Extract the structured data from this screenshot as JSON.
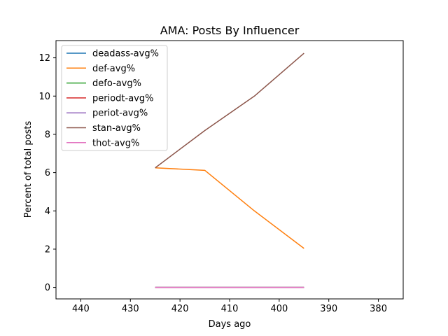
{
  "chart_data": {
    "type": "line",
    "title": "AMA: Posts By Influencer",
    "xlabel": "Days ago",
    "ylabel": "Percent of total posts",
    "xlim": [
      445,
      375
    ],
    "ylim": [
      -0.6,
      12.9
    ],
    "x_ticks": [
      440,
      430,
      420,
      410,
      400,
      390,
      380
    ],
    "y_ticks": [
      0,
      2,
      4,
      6,
      8,
      10,
      12
    ],
    "legend_position": "top-left",
    "grid": false,
    "series": [
      {
        "name": "deadass-avg%",
        "color": "#1f77b4",
        "x": [
          425,
          415,
          405,
          395
        ],
        "y": [
          0,
          0,
          0,
          0
        ]
      },
      {
        "name": "def-avg%",
        "color": "#ff7f0e",
        "x": [
          425,
          415,
          405,
          395
        ],
        "y": [
          6.25,
          6.12,
          4.0,
          2.04
        ]
      },
      {
        "name": "defo-avg%",
        "color": "#2ca02c",
        "x": [
          425,
          415,
          405,
          395
        ],
        "y": [
          0,
          0,
          0,
          0
        ]
      },
      {
        "name": "periodt-avg%",
        "color": "#d62728",
        "x": [
          425,
          415,
          405,
          395
        ],
        "y": [
          0,
          0,
          0,
          0
        ]
      },
      {
        "name": "periot-avg%",
        "color": "#9467bd",
        "x": [
          425,
          415,
          405,
          395
        ],
        "y": [
          0,
          0,
          0,
          0
        ]
      },
      {
        "name": "stan-avg%",
        "color": "#8c564b",
        "x": [
          425,
          415,
          405,
          395
        ],
        "y": [
          6.25,
          8.2,
          10.0,
          12.24
        ]
      },
      {
        "name": "thot-avg%",
        "color": "#e377c2",
        "x": [
          425,
          415,
          405,
          395
        ],
        "y": [
          0,
          0,
          0,
          0
        ]
      }
    ]
  }
}
